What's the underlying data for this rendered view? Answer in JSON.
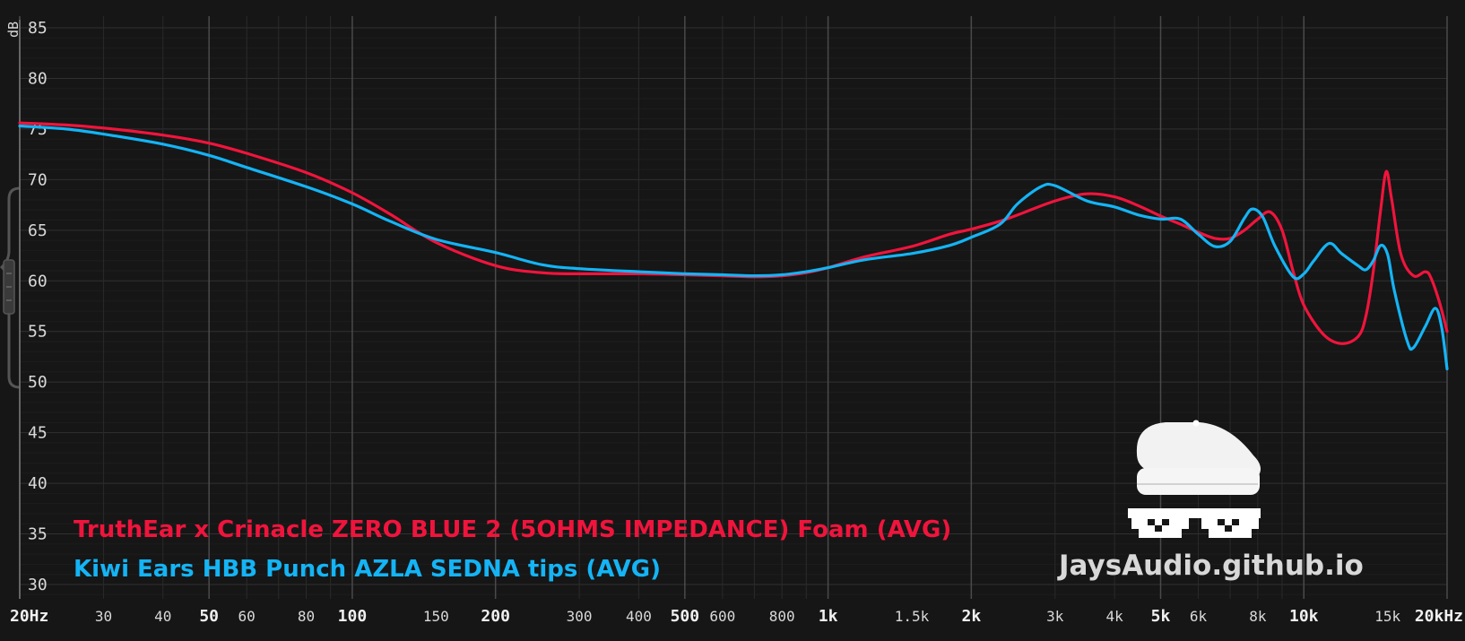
{
  "chart_data": {
    "type": "line",
    "ylabel": "dB",
    "xscale": "log",
    "xlim": [
      20,
      20000
    ],
    "ylim": [
      28,
      86
    ],
    "grid": true,
    "yticks": [
      {
        "value": 85,
        "label": "85"
      },
      {
        "value": 80,
        "label": "80"
      },
      {
        "value": 75,
        "label": "75"
      },
      {
        "value": 70,
        "label": "70"
      },
      {
        "value": 65,
        "label": "65"
      },
      {
        "value": 60,
        "label": "60"
      },
      {
        "value": 55,
        "label": "55"
      },
      {
        "value": 50,
        "label": "50"
      },
      {
        "value": 45,
        "label": "45"
      },
      {
        "value": 40,
        "label": "40"
      },
      {
        "value": 35,
        "label": "35"
      },
      {
        "value": 30,
        "label": "30"
      }
    ],
    "xticks": [
      {
        "value": 20,
        "label": "20Hz",
        "major": true
      },
      {
        "value": 30,
        "label": "30",
        "major": false
      },
      {
        "value": 40,
        "label": "40",
        "major": false
      },
      {
        "value": 50,
        "label": "50",
        "major": true
      },
      {
        "value": 60,
        "label": "60",
        "major": false
      },
      {
        "value": 80,
        "label": "80",
        "major": false
      },
      {
        "value": 100,
        "label": "100",
        "major": true
      },
      {
        "value": 150,
        "label": "150",
        "major": false
      },
      {
        "value": 200,
        "label": "200",
        "major": true
      },
      {
        "value": 300,
        "label": "300",
        "major": false
      },
      {
        "value": 400,
        "label": "400",
        "major": false
      },
      {
        "value": 500,
        "label": "500",
        "major": true
      },
      {
        "value": 600,
        "label": "600",
        "major": false
      },
      {
        "value": 800,
        "label": "800",
        "major": false
      },
      {
        "value": 1000,
        "label": "1k",
        "major": true
      },
      {
        "value": 1500,
        "label": "1.5k",
        "major": false
      },
      {
        "value": 2000,
        "label": "2k",
        "major": true
      },
      {
        "value": 3000,
        "label": "3k",
        "major": false
      },
      {
        "value": 4000,
        "label": "4k",
        "major": false
      },
      {
        "value": 5000,
        "label": "5k",
        "major": true
      },
      {
        "value": 6000,
        "label": "6k",
        "major": false
      },
      {
        "value": 8000,
        "label": "8k",
        "major": false
      },
      {
        "value": 10000,
        "label": "10k",
        "major": true
      },
      {
        "value": 15000,
        "label": "15k",
        "major": false
      },
      {
        "value": 20000,
        "label": "20kHz",
        "major": true
      }
    ],
    "series": [
      {
        "name": "TruthEar x Crinacle ZERO BLUE 2 (5OHMS IMPEDANCE) Foam (AVG)",
        "color": "#f0143c",
        "points": [
          [
            20,
            75.6
          ],
          [
            25,
            75.4
          ],
          [
            30,
            75.1
          ],
          [
            40,
            74.4
          ],
          [
            50,
            73.6
          ],
          [
            60,
            72.6
          ],
          [
            80,
            70.7
          ],
          [
            100,
            68.7
          ],
          [
            120,
            66.6
          ],
          [
            150,
            63.8
          ],
          [
            200,
            61.5
          ],
          [
            250,
            60.8
          ],
          [
            300,
            60.7
          ],
          [
            400,
            60.7
          ],
          [
            500,
            60.6
          ],
          [
            600,
            60.5
          ],
          [
            700,
            60.4
          ],
          [
            800,
            60.5
          ],
          [
            900,
            60.8
          ],
          [
            1000,
            61.3
          ],
          [
            1200,
            62.4
          ],
          [
            1500,
            63.4
          ],
          [
            1800,
            64.6
          ],
          [
            2000,
            65.1
          ],
          [
            2300,
            65.9
          ],
          [
            2500,
            66.5
          ],
          [
            3000,
            67.9
          ],
          [
            3500,
            68.6
          ],
          [
            4000,
            68.3
          ],
          [
            4500,
            67.4
          ],
          [
            5000,
            66.4
          ],
          [
            5500,
            65.6
          ],
          [
            6000,
            64.8
          ],
          [
            6500,
            64.2
          ],
          [
            7000,
            64.2
          ],
          [
            7500,
            65.0
          ],
          [
            8000,
            66.1
          ],
          [
            8500,
            66.8
          ],
          [
            9000,
            65.0
          ],
          [
            9500,
            60.9
          ],
          [
            10000,
            57.6
          ],
          [
            11000,
            54.7
          ],
          [
            12000,
            53.8
          ],
          [
            13000,
            54.5
          ],
          [
            13500,
            56.5
          ],
          [
            14000,
            61.0
          ],
          [
            14500,
            67.0
          ],
          [
            14900,
            70.8
          ],
          [
            15300,
            68.0
          ],
          [
            16000,
            62.6
          ],
          [
            17000,
            60.5
          ],
          [
            18000,
            60.9
          ],
          [
            18500,
            60.3
          ],
          [
            19300,
            57.8
          ],
          [
            20000,
            55.0
          ]
        ]
      },
      {
        "name": "Kiwi Ears HBB Punch AZLA SEDNA tips (AVG)",
        "color": "#14b4f5",
        "points": [
          [
            20,
            75.3
          ],
          [
            25,
            75.0
          ],
          [
            30,
            74.5
          ],
          [
            40,
            73.5
          ],
          [
            50,
            72.4
          ],
          [
            60,
            71.2
          ],
          [
            80,
            69.3
          ],
          [
            100,
            67.6
          ],
          [
            120,
            65.9
          ],
          [
            150,
            64.1
          ],
          [
            200,
            62.8
          ],
          [
            250,
            61.6
          ],
          [
            300,
            61.2
          ],
          [
            400,
            60.9
          ],
          [
            500,
            60.7
          ],
          [
            600,
            60.6
          ],
          [
            700,
            60.5
          ],
          [
            800,
            60.6
          ],
          [
            900,
            60.9
          ],
          [
            1000,
            61.3
          ],
          [
            1200,
            62.1
          ],
          [
            1500,
            62.7
          ],
          [
            1800,
            63.5
          ],
          [
            2000,
            64.3
          ],
          [
            2300,
            65.6
          ],
          [
            2500,
            67.6
          ],
          [
            2800,
            69.3
          ],
          [
            3000,
            69.4
          ],
          [
            3500,
            67.9
          ],
          [
            4000,
            67.3
          ],
          [
            4500,
            66.5
          ],
          [
            5000,
            66.1
          ],
          [
            5500,
            66.1
          ],
          [
            6000,
            64.6
          ],
          [
            6500,
            63.4
          ],
          [
            7000,
            63.9
          ],
          [
            7500,
            66.2
          ],
          [
            7800,
            67.1
          ],
          [
            8200,
            66.3
          ],
          [
            8700,
            63.4
          ],
          [
            9500,
            60.4
          ],
          [
            10000,
            60.7
          ],
          [
            10500,
            62.0
          ],
          [
            11300,
            63.7
          ],
          [
            12000,
            62.7
          ],
          [
            13000,
            61.5
          ],
          [
            13500,
            61.1
          ],
          [
            14000,
            62.0
          ],
          [
            14500,
            63.5
          ],
          [
            15000,
            62.6
          ],
          [
            15500,
            59.0
          ],
          [
            16500,
            54.0
          ],
          [
            17000,
            53.4
          ],
          [
            18000,
            55.5
          ],
          [
            18900,
            57.3
          ],
          [
            19500,
            55.3
          ],
          [
            20000,
            51.3
          ]
        ]
      }
    ]
  },
  "watermark": {
    "text": "JaysAudio.github.io",
    "icons": [
      "white-cap-icon",
      "pixel-sunglasses-icon"
    ]
  },
  "colors": {
    "background": "#161616",
    "grid_minor": "#2a2a2a",
    "grid_major": "#4a4a4a",
    "axis": "#777777"
  }
}
